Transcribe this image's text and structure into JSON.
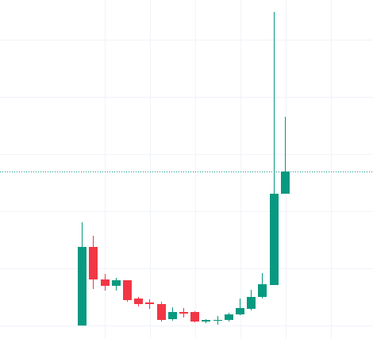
{
  "chart_data": {
    "type": "candlestick",
    "open": [
      17,
      116,
      75,
      67,
      74,
      51,
      46,
      44,
      25,
      34,
      34,
      22,
      23,
      24,
      31,
      38,
      53,
      68,
      183
    ],
    "high": [
      147,
      130,
      82,
      77,
      74,
      53,
      50,
      47,
      40,
      39,
      35,
      25,
      29,
      33,
      51,
      62,
      83,
      412,
      280
    ],
    "low": [
      17,
      63,
      61,
      61,
      47,
      41,
      38,
      22,
      23,
      27,
      21,
      20,
      18,
      22,
      30,
      36,
      51,
      68,
      183
    ],
    "close": [
      116,
      75,
      67,
      74,
      49,
      44,
      44,
      24,
      34,
      32,
      22,
      24,
      24,
      31,
      39,
      53,
      69,
      183,
      211
    ],
    "up_color": "#089981",
    "down_color": "#f23645",
    "price_line": 211,
    "ylim": [
      0,
      427
    ],
    "yticks": [
      17,
      89,
      161,
      233,
      305,
      377
    ],
    "grid": true
  }
}
